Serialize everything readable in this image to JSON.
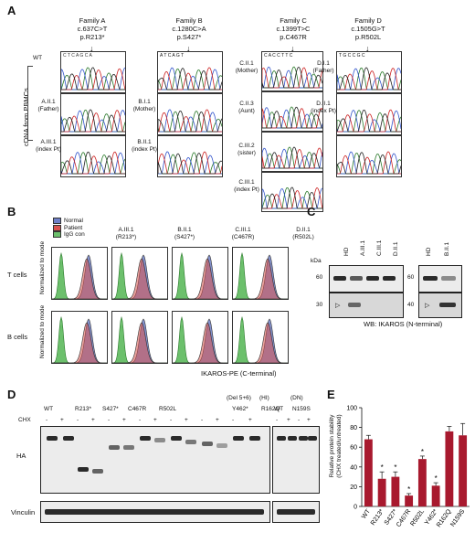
{
  "panelA": {
    "letter": "A",
    "families": [
      {
        "name": "Family A",
        "cdna": "c.637C>T",
        "protein": "p.R213*"
      },
      {
        "name": "Family B",
        "cdna": "c.1280C>A",
        "protein": "p.S427*"
      },
      {
        "name": "Family C",
        "cdna": "c.1399T>C",
        "protein": "p.C467R"
      },
      {
        "name": "Family D",
        "cdna": "c.1505G>T",
        "protein": "p.R502L"
      }
    ],
    "wt_label": "WT",
    "side_label": "cDNA from PBMCs",
    "familyA_labels": [
      {
        "id": "A.II.1",
        "role": "(Father)"
      },
      {
        "id": "A.III.1",
        "role": "(index Pt)"
      }
    ],
    "familyB_labels": [
      {
        "id": "B.I.1",
        "role": "(Mother)"
      },
      {
        "id": "B.II.1",
        "role": "(index Pt)"
      }
    ],
    "familyC_labels": [
      {
        "id": "C.II.1",
        "role": "(Mother)"
      },
      {
        "id": "C.II.3",
        "role": "(Aunt)"
      },
      {
        "id": "C.III.2",
        "role": "(sister)"
      },
      {
        "id": "C.III.1",
        "role": "(index Pt)"
      }
    ],
    "familyD_labels": [
      {
        "id": "D.I.1",
        "role": "(Father)"
      },
      {
        "id": "D.II.1",
        "role": "(index Pt)"
      }
    ],
    "seq_text": [
      "C T C A G C A",
      "A T C A G T",
      "C A C C T T C",
      "T G C C G C"
    ]
  },
  "panelB": {
    "letter": "B",
    "legend": [
      {
        "name": "Normal",
        "color": "#6f7fc7"
      },
      {
        "name": "Patient",
        "color": "#d9534f"
      },
      {
        "name": "IgG con",
        "color": "#6cc06c"
      }
    ],
    "columns": [
      {
        "id": "A.III.1",
        "mut": "(R213*)"
      },
      {
        "id": "B.II.1",
        "mut": "(S427*)"
      },
      {
        "id": "C.III.1",
        "mut": "(C467R)"
      },
      {
        "id": "D.II.1",
        "mut": "(R502L)"
      }
    ],
    "rows": [
      "T cells",
      "B cells"
    ],
    "ylabel": "Normalized to mode",
    "xlabel": "IKAROS-PE (C-terminal)"
  },
  "panelC": {
    "letter": "C",
    "lanes_left": [
      "HD",
      "A.III.1",
      "C.III.1",
      "D.II.1"
    ],
    "lanes_right": [
      "HD",
      "B.II.1"
    ],
    "kda_label": "kDa",
    "markers_left": [
      "60",
      "30"
    ],
    "markers_right": [
      "60",
      "40"
    ],
    "caption": "WB: IKAROS (N-terminal)"
  },
  "panelD": {
    "letter": "D",
    "mutants": [
      "WT",
      "R213*",
      "S427*",
      "C467R",
      "R502L",
      "Y462*",
      "R162Q"
    ],
    "mutants2": [
      "WT",
      "N159S"
    ],
    "annot_del": "(Del 5+6)",
    "annot_hi": "(HI)",
    "annot_dn": "(DN)",
    "chx": "CHX",
    "minus": "-",
    "plus": "+",
    "ha": "HA",
    "vinculin": "Vinculin"
  },
  "panelE": {
    "letter": "E",
    "chart_data": {
      "type": "bar",
      "categories": [
        "WT",
        "R213*",
        "S427*",
        "C467R",
        "R502L",
        "Y462*",
        "R162Q",
        "N159S"
      ],
      "values": [
        68,
        28,
        30,
        11,
        48,
        21,
        76,
        72
      ],
      "errors": [
        4,
        7,
        5,
        2,
        3,
        3,
        5,
        12
      ],
      "significant": [
        false,
        true,
        true,
        true,
        true,
        true,
        false,
        false
      ],
      "ylabel": "Relative protein stability (CHX treated/untreated)",
      "ylabel_line1": "Relative protein stability",
      "ylabel_line2": "(CHX treated/untreated)",
      "yticks": [
        "0",
        "20",
        "40",
        "60",
        "80",
        "100"
      ],
      "ylim": [
        0,
        100
      ],
      "bar_color": "#a8192e",
      "sig_mark": "*"
    }
  }
}
